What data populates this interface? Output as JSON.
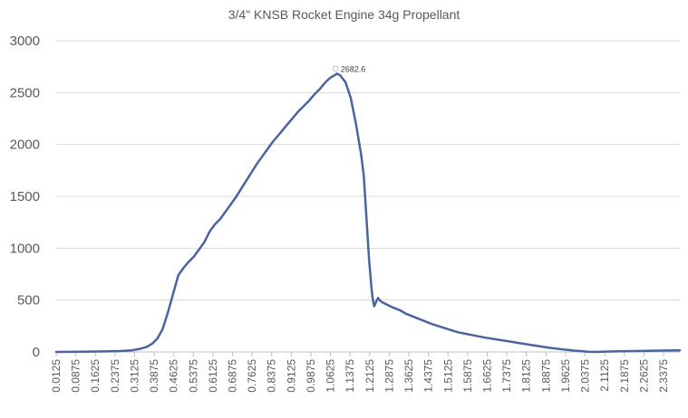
{
  "chart_data": {
    "type": "line",
    "title": "3/4\" KNSB Rocket Engine 34g Propellant",
    "xlabel": "",
    "ylabel": "",
    "ylim": [
      0,
      3000
    ],
    "yticks": [
      0,
      500,
      1000,
      1500,
      2000,
      2500,
      3000
    ],
    "xlim": [
      0.0125,
      2.4
    ],
    "xtick_labels": [
      "0.0125",
      "0.0875",
      "0.1625",
      "0.2375",
      "0.3125",
      "0.3875",
      "0.4625",
      "0.5375",
      "0.6125",
      "0.6875",
      "0.7625",
      "0.8375",
      "0.9125",
      "0.9875",
      "1.0625",
      "1.1375",
      "1.2125",
      "1.2875",
      "1.3625",
      "1.4375",
      "1.5125",
      "1.5875",
      "1.6625",
      "1.7375",
      "1.8125",
      "1.8875",
      "1.9625",
      "2.0375",
      "2.1125",
      "2.1875",
      "2.2625",
      "2.3375"
    ],
    "grid": true,
    "legend": "none",
    "series_color": "#4a64a0",
    "data_labels": [
      {
        "x": 1.0875,
        "y": 2682.6,
        "text": "2682.6"
      }
    ],
    "series": [
      {
        "x": [
          0.0125,
          0.1,
          0.2,
          0.25,
          0.3,
          0.33,
          0.36,
          0.38,
          0.4,
          0.42,
          0.44,
          0.46,
          0.48,
          0.5,
          0.52,
          0.54,
          0.56,
          0.58,
          0.6,
          0.62,
          0.64,
          0.66,
          0.68,
          0.7,
          0.72,
          0.74,
          0.76,
          0.78,
          0.8,
          0.82,
          0.84,
          0.86,
          0.88,
          0.9,
          0.92,
          0.94,
          0.96,
          0.98,
          1.0,
          1.02,
          1.04,
          1.06,
          1.08,
          1.0875,
          1.1,
          1.12,
          1.14,
          1.16,
          1.18,
          1.19,
          1.2,
          1.21,
          1.22,
          1.225,
          1.23,
          1.235,
          1.24,
          1.245,
          1.25,
          1.26,
          1.28,
          1.3,
          1.33,
          1.35,
          1.4,
          1.45,
          1.5,
          1.55,
          1.6,
          1.65,
          1.7,
          1.75,
          1.8,
          1.85,
          1.9,
          1.95,
          2.0,
          2.05,
          2.075,
          2.1,
          2.15,
          2.2,
          2.25,
          2.3,
          2.35,
          2.4
        ],
        "values": [
          0,
          2,
          5,
          8,
          15,
          28,
          50,
          80,
          130,
          220,
          380,
          560,
          740,
          810,
          870,
          920,
          990,
          1060,
          1160,
          1230,
          1280,
          1350,
          1420,
          1490,
          1570,
          1650,
          1730,
          1810,
          1880,
          1950,
          2020,
          2080,
          2140,
          2200,
          2260,
          2320,
          2370,
          2420,
          2480,
          2530,
          2590,
          2640,
          2670,
          2682.6,
          2665,
          2600,
          2450,
          2200,
          1900,
          1700,
          1300,
          900,
          600,
          500,
          440,
          470,
          500,
          520,
          500,
          480,
          455,
          430,
          400,
          370,
          320,
          270,
          230,
          190,
          165,
          140,
          120,
          100,
          80,
          60,
          40,
          25,
          12,
          2,
          0,
          2,
          5,
          8,
          10,
          12,
          14,
          15
        ]
      }
    ]
  }
}
